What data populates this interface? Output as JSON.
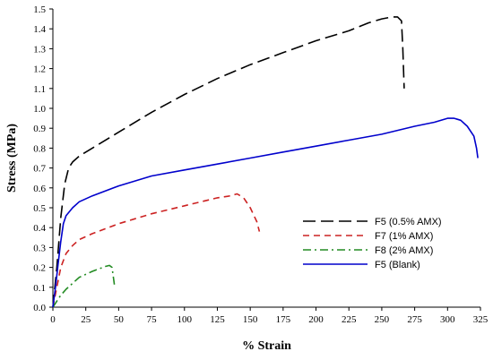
{
  "chart_data": {
    "type": "line",
    "title": "",
    "xlabel": "% Strain",
    "ylabel": "Stress (MPa)",
    "xlim": [
      0,
      325
    ],
    "ylim": [
      0,
      1.5
    ],
    "xticks": [
      "0",
      "25",
      "50",
      "75",
      "100",
      "125",
      "150",
      "175",
      "200",
      "225",
      "250",
      "275",
      "300",
      "325"
    ],
    "yticks": [
      "0.0",
      "0.1",
      "0.2",
      "0.3",
      "0.4",
      "0.5",
      "0.6",
      "0.7",
      "0.8",
      "0.9",
      "1.0",
      "1.1",
      "1.2",
      "1.3",
      "1.4",
      "1.5"
    ],
    "grid": false,
    "legend_position": "center-right",
    "series": [
      {
        "name": "F5 (0.5% AMX)",
        "color": "#000000",
        "dash": "long-dash",
        "x": [
          0,
          3,
          6,
          9,
          12,
          15,
          20,
          30,
          50,
          75,
          100,
          125,
          150,
          175,
          200,
          225,
          240,
          250,
          258,
          262,
          265,
          266,
          267
        ],
        "y": [
          0,
          0.2,
          0.45,
          0.62,
          0.7,
          0.73,
          0.76,
          0.8,
          0.88,
          0.98,
          1.07,
          1.15,
          1.22,
          1.28,
          1.34,
          1.39,
          1.43,
          1.45,
          1.46,
          1.46,
          1.44,
          1.3,
          1.1
        ]
      },
      {
        "name": "F7 (1% AMX)",
        "color": "#cc2222",
        "dash": "short-dash",
        "x": [
          0,
          3,
          6,
          10,
          15,
          20,
          30,
          50,
          75,
          100,
          125,
          135,
          140,
          145,
          150,
          155,
          157
        ],
        "y": [
          0,
          0.1,
          0.2,
          0.27,
          0.31,
          0.34,
          0.37,
          0.42,
          0.47,
          0.51,
          0.55,
          0.56,
          0.57,
          0.55,
          0.5,
          0.43,
          0.38
        ]
      },
      {
        "name": "F8 (2% AMX)",
        "color": "#228b22",
        "dash": "dash-dot",
        "x": [
          0,
          3,
          6,
          10,
          15,
          20,
          30,
          40,
          43,
          45,
          46,
          47
        ],
        "y": [
          0,
          0.03,
          0.06,
          0.09,
          0.12,
          0.15,
          0.18,
          0.205,
          0.21,
          0.2,
          0.15,
          0.1
        ]
      },
      {
        "name": "F5 (Blank)",
        "color": "#0000cc",
        "dash": "solid",
        "x": [
          0,
          2,
          4,
          6,
          8,
          10,
          15,
          20,
          30,
          50,
          75,
          100,
          125,
          150,
          175,
          200,
          225,
          250,
          275,
          290,
          300,
          305,
          310,
          315,
          320,
          322,
          323
        ],
        "y": [
          0,
          0.1,
          0.22,
          0.33,
          0.42,
          0.46,
          0.5,
          0.53,
          0.56,
          0.61,
          0.66,
          0.69,
          0.72,
          0.75,
          0.78,
          0.81,
          0.84,
          0.87,
          0.91,
          0.93,
          0.95,
          0.95,
          0.94,
          0.91,
          0.86,
          0.8,
          0.75
        ]
      }
    ]
  }
}
